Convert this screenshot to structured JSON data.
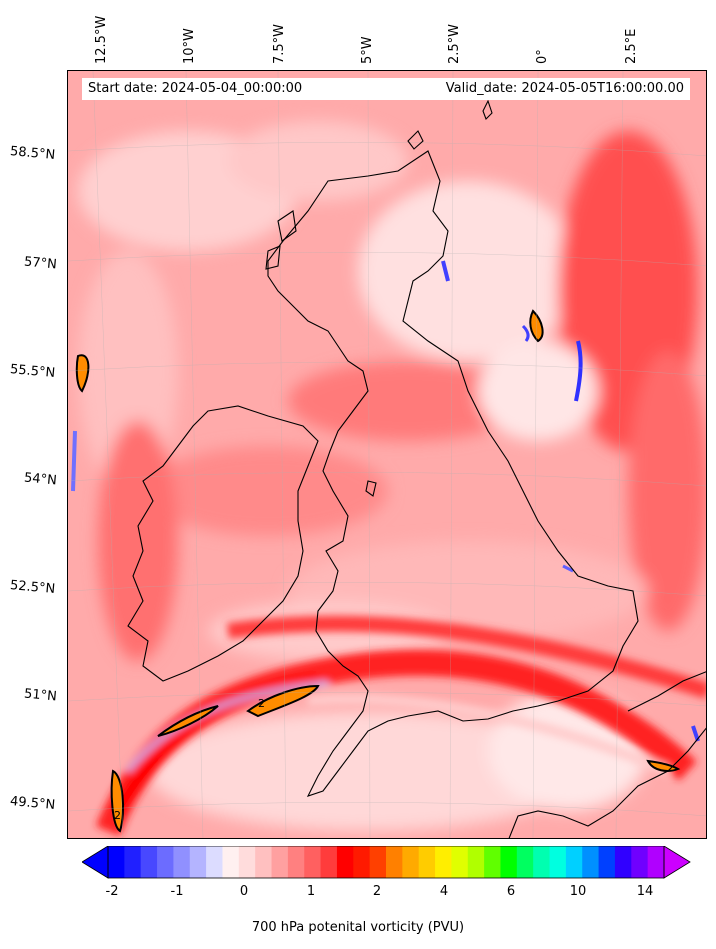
{
  "header": {
    "start_date": "Start date: 2024-05-04_00:00:00",
    "valid_date": "Valid_date: 2024-05-05T16:00:00.00"
  },
  "longitude_labels": [
    "12.5°W",
    "10°W",
    "7.5°W",
    "5°W",
    "2.5°W",
    "0°",
    "2.5°E"
  ],
  "latitude_labels": [
    "58.5°N",
    "57°N",
    "55.5°N",
    "54°N",
    "52.5°N",
    "51°N",
    "49.5°N"
  ],
  "colorbar": {
    "label": "700 hPa potenital vorticity (PVU)",
    "ticks": [
      "-2",
      "-1",
      "0",
      "1",
      "2",
      "4",
      "6",
      "10",
      "14"
    ],
    "colors": [
      "#0000ff",
      "#2020ff",
      "#4848ff",
      "#6c6cff",
      "#9090ff",
      "#b4b4ff",
      "#dcdcff",
      "#fff0f0",
      "#ffdcdc",
      "#ffc0c0",
      "#ffa0a0",
      "#ff8080",
      "#ff6060",
      "#ff3c3c",
      "#ff0000",
      "#ff1a00",
      "#ff4000",
      "#ff8000",
      "#ffaa00",
      "#ffcc00",
      "#ffee00",
      "#e0ff00",
      "#b0ff00",
      "#60ff00",
      "#00ff00",
      "#00ff60",
      "#00ffb0",
      "#00ffe0",
      "#00d0ff",
      "#0090ff",
      "#0040ff",
      "#3000ff",
      "#7000ff",
      "#b000ff"
    ],
    "under_color": "#0000ff",
    "over_color": "#cc00ff"
  },
  "map": {
    "background_color": "#ff9f9f",
    "coastline_color": "#000000",
    "contour_label": "2"
  }
}
